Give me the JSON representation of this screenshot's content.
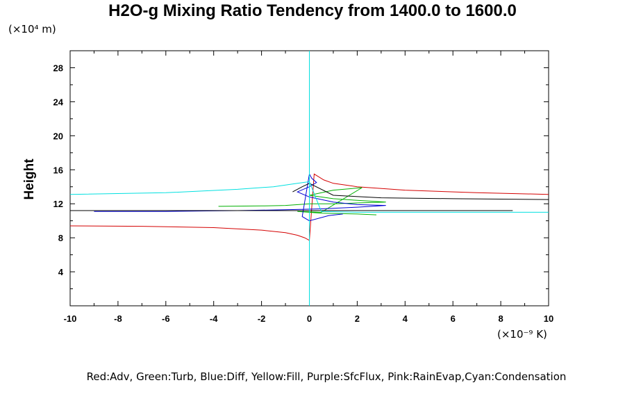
{
  "chart_data": {
    "type": "line",
    "title": "H2O-g Mixing Ratio Tendency from 1400.0 to 1600.0",
    "ylabel": "Height",
    "y_unit": "(×10⁴ m)",
    "x_unit": "(×10⁻⁹ K)",
    "xlim": [
      -10,
      10
    ],
    "ylim": [
      0,
      30
    ],
    "x_ticks": [
      "-10",
      "-8",
      "-6",
      "-4",
      "-2",
      "0",
      "2",
      "4",
      "6",
      "8",
      "10"
    ],
    "x_tick_values": [
      -10,
      -8,
      -6,
      -4,
      -2,
      0,
      2,
      4,
      6,
      8,
      10
    ],
    "y_ticks": [
      "4",
      "8",
      "12",
      "16",
      "20",
      "24",
      "28"
    ],
    "y_tick_values": [
      4,
      8,
      12,
      16,
      20,
      24,
      28
    ],
    "grid": false,
    "legend": "Red:Adv, Green:Turb, Blue:Diff, Yellow:Fill, Purple:SfcFlux, Pink:RainEvap,Cyan:Condensation",
    "series": [
      {
        "color": "#d40000",
        "x": [
          -10,
          -7,
          -4,
          -2,
          -1,
          -0.5,
          -0.2,
          0,
          0.2,
          0.6,
          1,
          2,
          4,
          7,
          10
        ],
        "y": [
          9.4,
          9.35,
          9.2,
          8.9,
          8.6,
          8.3,
          8.0,
          7.7,
          15.5,
          14.8,
          14.4,
          14.0,
          13.6,
          13.3,
          13.1
        ]
      },
      {
        "color": "#00b000",
        "x": [
          -3.8,
          -2,
          -1,
          0,
          1,
          2,
          3.2,
          2,
          1,
          0,
          1,
          2.2,
          0.5,
          -0.5,
          0.5,
          2,
          2.8
        ],
        "y": [
          11.7,
          11.75,
          11.8,
          12.0,
          12.0,
          12.1,
          12.2,
          12.4,
          12.6,
          13.0,
          13.6,
          13.9,
          11.0,
          11.1,
          10.9,
          10.8,
          10.7
        ]
      },
      {
        "color": "#0000d4",
        "x": [
          -9,
          -6,
          -3,
          -1,
          0.5,
          2,
          3.2,
          2,
          1,
          0,
          -0.5,
          0,
          0.3,
          0.1,
          0,
          -0.3,
          0,
          0.8,
          1.4
        ],
        "y": [
          11.1,
          11.1,
          11.2,
          11.3,
          11.4,
          11.6,
          11.8,
          11.9,
          12.2,
          12.8,
          13.4,
          14.0,
          14.5,
          15.0,
          15.5,
          10.5,
          10.0,
          10.6,
          10.8
        ]
      },
      {
        "color": "#000000",
        "x": [
          -0.7,
          -0.3,
          0,
          1,
          3,
          6,
          10
        ],
        "y": [
          13.4,
          14.0,
          14.4,
          13.0,
          12.7,
          12.6,
          12.5
        ]
      },
      {
        "color": "#000000",
        "x": [
          -10,
          -4,
          0,
          4,
          8.5
        ],
        "y": [
          11.2,
          11.2,
          11.2,
          11.2,
          11.2
        ]
      },
      {
        "color": "#00e0e0",
        "x": [
          -10,
          -6,
          -3,
          -1.5,
          -0.5,
          0,
          0.5,
          2,
          5,
          10
        ],
        "y": [
          13.1,
          13.3,
          13.7,
          14.0,
          14.4,
          14.6,
          11.1,
          11.0,
          11.0,
          11.0
        ]
      },
      {
        "color": "#00e0e0",
        "x": [
          0,
          0
        ],
        "y": [
          0,
          30
        ]
      }
    ]
  }
}
